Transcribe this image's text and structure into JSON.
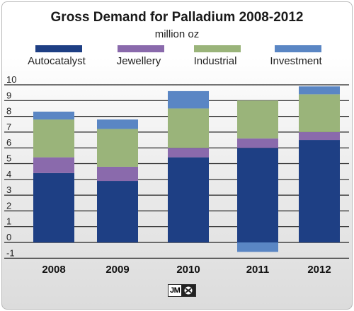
{
  "chart_data": {
    "type": "bar",
    "stacked": true,
    "title": "Gross Demand for Palladium 2008-2012",
    "subtitle": "million oz",
    "categories": [
      "2008",
      "2009",
      "2010",
      "2011",
      "2012"
    ],
    "series": [
      {
        "name": "Autocatalyst",
        "color": "#1e3f84",
        "values": [
          4.4,
          3.9,
          5.4,
          6.0,
          6.5
        ]
      },
      {
        "name": "Jewellery",
        "color": "#8a6aac",
        "values": [
          1.0,
          0.9,
          0.6,
          0.6,
          0.5
        ]
      },
      {
        "name": "Industrial",
        "color": "#9ab47a",
        "values": [
          2.4,
          2.4,
          2.5,
          2.4,
          2.4
        ]
      },
      {
        "name": "Investment",
        "color": "#5a86c4",
        "values": [
          0.5,
          0.6,
          1.1,
          -0.6,
          0.5
        ]
      }
    ],
    "yticks": [
      "-1",
      "0",
      "1",
      "2",
      "3",
      "4",
      "5",
      "6",
      "7",
      "8",
      "9",
      "10"
    ],
    "ylim": [
      -1,
      10
    ],
    "grid": true,
    "legend_position": "top"
  },
  "logo": {
    "text": "JM"
  }
}
